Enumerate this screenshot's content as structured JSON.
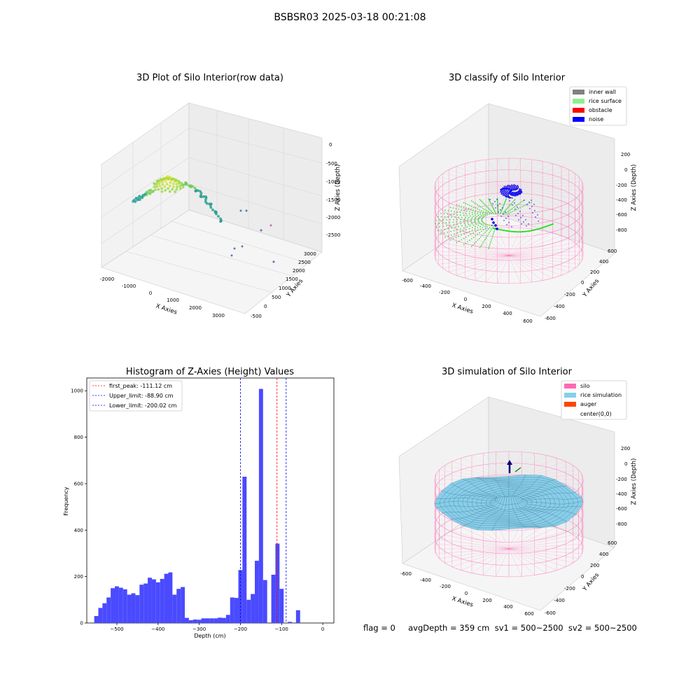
{
  "suptitle": "BSBSR03 2025-03-18 00:21:08",
  "status_line": "flag = 0     avgDepth = 359 cm  sv1 = 500~2500  sv2 = 500~2500",
  "colors": {
    "inner_wall": "#808080",
    "rice_surface": "#90ee90",
    "obstacle": "#ff0000",
    "noise": "#0000ff",
    "silo": "#ff69b4",
    "rice_simulation": "#87ceeb",
    "auger": "#ff4500",
    "hist_bar": "#4a4aff",
    "first_peak_line": "#ff0000",
    "limit_line": "#0000ff"
  },
  "panels": {
    "raw": {
      "title": "3D Plot of Silo Interior(row data)",
      "xlabel": "X Axies",
      "ylabel": "Y Axies",
      "zlabel": "Z Axies (Depth)",
      "x_ticks": [
        "-2000",
        "-1000",
        "0",
        "1000",
        "2000",
        "3000"
      ],
      "y_ticks": [
        "-500",
        "0",
        "500",
        "1000",
        "1500",
        "2000",
        "2500",
        "3000"
      ],
      "z_ticks": [
        "0",
        "-500",
        "-1000",
        "-1500",
        "-2000",
        "-2500"
      ]
    },
    "classify": {
      "title": "3D classify of Silo Interior",
      "xlabel": "X Axies",
      "ylabel": "Y Axies",
      "zlabel": "Z Axies (Depth)",
      "x_ticks": [
        "-600",
        "-400",
        "-200",
        "0",
        "200",
        "400",
        "600"
      ],
      "y_ticks": [
        "-600",
        "-400",
        "-200",
        "0",
        "200",
        "400",
        "600"
      ],
      "z_ticks": [
        "200",
        "0",
        "-200",
        "-400",
        "-600",
        "-800"
      ],
      "legend": [
        {
          "label": "inner wall",
          "color": "#808080"
        },
        {
          "label": "rice surface",
          "color": "#90ee90"
        },
        {
          "label": "obstacle",
          "color": "#ff0000"
        },
        {
          "label": "noise",
          "color": "#0000ff"
        }
      ]
    },
    "simulation": {
      "title": "3D simulation of Silo Interior",
      "xlabel": "X Axies",
      "ylabel": "Y Axies",
      "zlabel": "Z Axies (Depth)",
      "x_ticks": [
        "-600",
        "-400",
        "-200",
        "0",
        "200",
        "400",
        "600"
      ],
      "y_ticks": [
        "-600",
        "-400",
        "-200",
        "0",
        "200",
        "400",
        "600"
      ],
      "z_ticks": [
        "200",
        "0",
        "-200",
        "-400",
        "-600",
        "-800"
      ],
      "legend": [
        {
          "label": "silo",
          "color": "#ff69b4"
        },
        {
          "label": "rice simulation",
          "color": "#87ceeb"
        },
        {
          "label": "auger",
          "color": "#ff4500"
        },
        {
          "label": "center(0,0)",
          "color": ""
        }
      ]
    }
  },
  "chart_data": [
    {
      "type": "histogram",
      "title": "Histogram of Z-Axies (Height) Values",
      "xlabel": "Depth (cm)",
      "ylabel": "Frequency",
      "xlim": [
        -573,
        27
      ],
      "ylim": [
        0,
        1055
      ],
      "xticks": [
        -500,
        -400,
        -300,
        -200,
        -100,
        0
      ],
      "xtick_labels": [
        "−500",
        "−400",
        "−300",
        "−200",
        "−100",
        "0"
      ],
      "yticks": [
        0,
        200,
        400,
        600,
        800,
        1000
      ],
      "bin_width": 10,
      "bin_starts": [
        -555,
        -545,
        -535,
        -525,
        -515,
        -505,
        -495,
        -485,
        -475,
        -465,
        -455,
        -445,
        -435,
        -425,
        -415,
        -405,
        -395,
        -385,
        -375,
        -365,
        -355,
        -345,
        -335,
        -325,
        -315,
        -305,
        -295,
        -285,
        -275,
        -265,
        -255,
        -245,
        -235,
        -225,
        -215,
        -205,
        -195,
        -185,
        -175,
        -165,
        -155,
        -145,
        -135,
        -125,
        -115,
        -105,
        -95,
        -85,
        -75,
        -65,
        -55,
        -45,
        -35,
        -25,
        -15,
        -5
      ],
      "values": [
        30,
        65,
        85,
        110,
        150,
        158,
        152,
        145,
        122,
        128,
        120,
        165,
        170,
        195,
        188,
        175,
        190,
        212,
        218,
        122,
        147,
        155,
        22,
        12,
        15,
        14,
        20,
        20,
        20,
        20,
        23,
        22,
        35,
        110,
        108,
        228,
        630,
        100,
        125,
        268,
        1008,
        185,
        0,
        208,
        342,
        147,
        0,
        5,
        0,
        55,
        0,
        0,
        0,
        0,
        0,
        0
      ],
      "vlines": [
        {
          "label": "first_peak: -111.12 cm",
          "x": -111.12,
          "color": "#ff0000"
        },
        {
          "label": "Upper_limit: -88.90 cm",
          "x": -88.9,
          "color": "#0000ff"
        },
        {
          "label": "Lower_limit: -200.02 cm",
          "x": -200.02,
          "color": "#0000ff"
        }
      ],
      "legend_position": "upper left",
      "grid": false
    }
  ]
}
